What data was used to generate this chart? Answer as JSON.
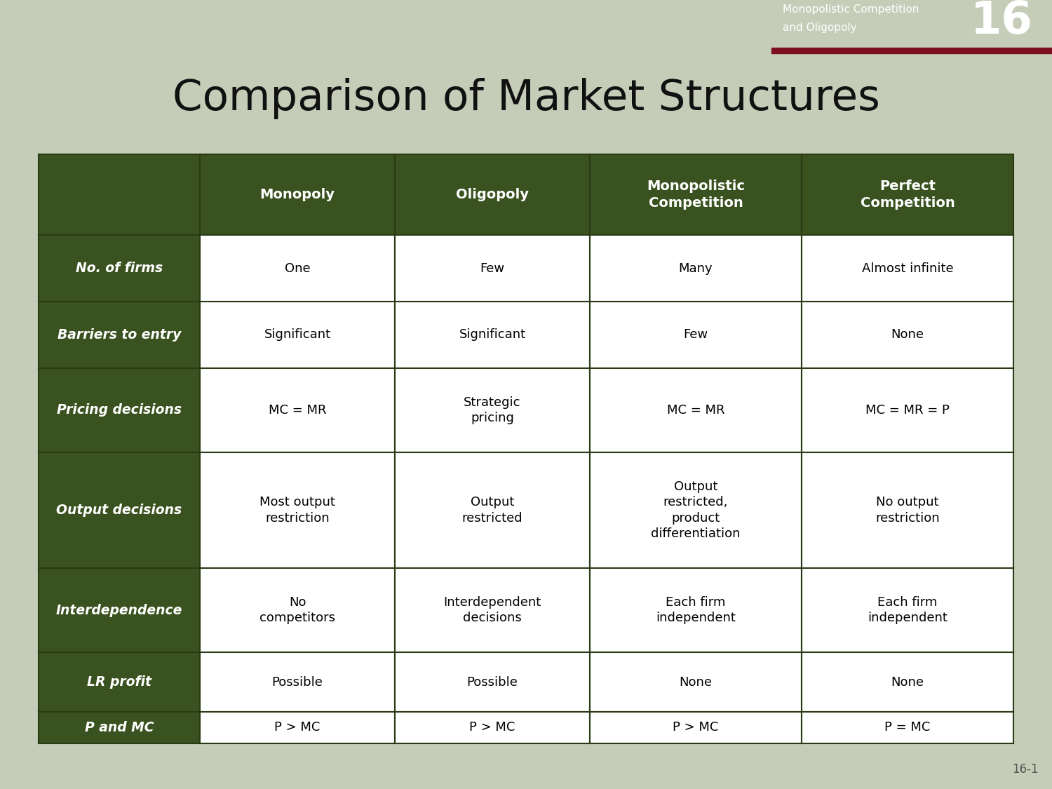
{
  "title": "Comparison of Market Structures",
  "title_fontsize": 44,
  "title_color": "#111111",
  "background_color": "#c5cdb8",
  "header_bg_color": "#3a5220",
  "header_text_color": "#ffffff",
  "row_label_bg_color": "#3a5220",
  "row_label_text_color": "#ffffff",
  "cell_bg_color": "#ffffff",
  "table_border_color": "#2a3a15",
  "top_bar_dark_color": "#4a6030",
  "top_bar_light_color": "#8aaa68",
  "corner_bg_color": "#555555",
  "corner_accent_color": "#7a1020",
  "corner_text_color": "#ffffff",
  "corner_number": "16",
  "corner_line1": "Monopolistic Competition",
  "corner_line2": "and Oligopoly",
  "slide_number": "16-1",
  "columns": [
    "Monopoly",
    "Oligopoly",
    "Monopolistic\nCompetition",
    "Perfect\nCompetition"
  ],
  "rows": [
    {
      "label": "No. of firms",
      "values": [
        "One",
        "Few",
        "Many",
        "Almost infinite"
      ]
    },
    {
      "label": "Barriers to entry",
      "values": [
        "Significant",
        "Significant",
        "Few",
        "None"
      ]
    },
    {
      "label": "Pricing decisions",
      "values": [
        "MC = MR",
        "Strategic\npricing",
        "MC = MR",
        "MC = MR = P"
      ]
    },
    {
      "label": "Output decisions",
      "values": [
        "Most output\nrestriction",
        "Output\nrestricted",
        "Output\nrestricted,\nproduct\ndifferentiation",
        "No output\nrestriction"
      ]
    },
    {
      "label": "Interdependence",
      "values": [
        "No\ncompetitors",
        "Interdependent\ndecisions",
        "Each firm\nindependent",
        "Each firm\nindependent"
      ]
    },
    {
      "label": "LR profit",
      "values": [
        "Possible",
        "Possible",
        "None",
        "None"
      ]
    },
    {
      "label": "P and MC",
      "values": [
        "P > MC",
        "P > MC",
        "P > MC",
        "P = MC"
      ]
    }
  ]
}
